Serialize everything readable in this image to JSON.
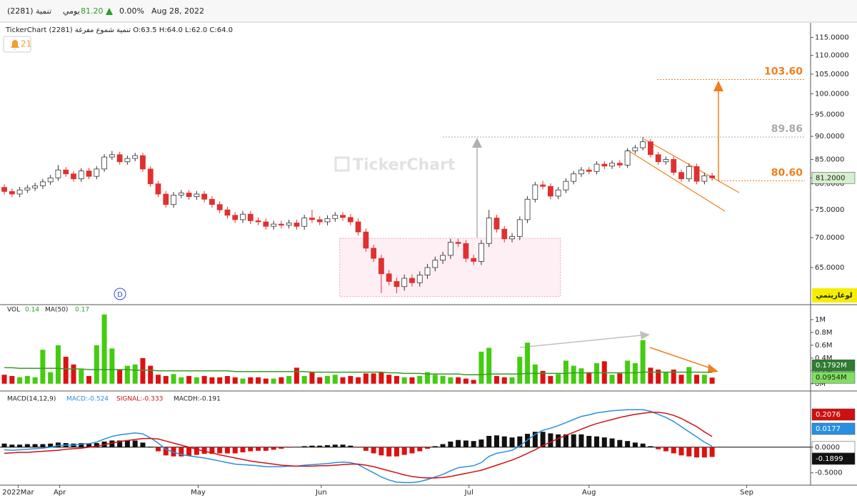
{
  "header": {
    "symbol": "(2281) تنمية",
    "period": "يومي",
    "price": "81.20",
    "change": "0.00%",
    "date": "Aug 28, 2022"
  },
  "chart_data": [
    {
      "type": "candlestick",
      "info": "TickerChart تنمية شموع مفرغة (2281) O:63.5 H:64.0 L:62.0 C:64.0",
      "alerts": "21",
      "watermark": "TickerChart",
      "marker": "D",
      "log_scale": true,
      "log_label": "لوغاريتمي",
      "up_color": "#ffffff",
      "down_color": "#e03030",
      "open": [
        79.3,
        78.5,
        78.0,
        78.8,
        79.2,
        79.6,
        80.4,
        81.2,
        82.8,
        82.0,
        81.0,
        82.6,
        81.5,
        83.0,
        85.5,
        86.0,
        84.5,
        85.2,
        85.8,
        83.0,
        80.0,
        78.0,
        76.0,
        77.8,
        78.2,
        77.5,
        78.0,
        77.0,
        76.0,
        75.0,
        74.0,
        73.2,
        74.2,
        73.0,
        72.8,
        72.0,
        72.4,
        72.2,
        72.6,
        72.0,
        73.5,
        73.2,
        72.8,
        73.4,
        74.0,
        73.6,
        72.8,
        71.0,
        68.2,
        66.5,
        64.0,
        62.8,
        62.0,
        63.3,
        62.6,
        63.8,
        65.0,
        66.2,
        67.0,
        69.2,
        69.0,
        66.5,
        66.0,
        69.0,
        73.5,
        71.5,
        69.8,
        70.2,
        73.2,
        77.0,
        79.8,
        79.5,
        77.6,
        78.8,
        80.5,
        82.0,
        82.8,
        82.5,
        84.0,
        83.6,
        84.2,
        83.8,
        86.8,
        87.5,
        88.8,
        86.0,
        84.5,
        85.0,
        82.3,
        81.0,
        83.5,
        80.5,
        81.6
      ],
      "high": [
        79.9,
        79.1,
        79.4,
        79.8,
        80.2,
        81.0,
        81.8,
        83.8,
        83.4,
        82.6,
        83.2,
        83.2,
        83.6,
        86.1,
        86.8,
        86.6,
        85.8,
        86.4,
        86.4,
        83.6,
        80.6,
        78.6,
        78.4,
        78.8,
        78.8,
        78.6,
        78.6,
        77.6,
        76.6,
        75.6,
        74.6,
        74.8,
        74.8,
        73.6,
        73.4,
        73.0,
        73.0,
        73.2,
        73.2,
        74.1,
        75.0,
        73.8,
        74.0,
        74.6,
        74.6,
        74.2,
        73.4,
        71.6,
        68.8,
        67.1,
        64.6,
        63.4,
        63.9,
        63.9,
        64.4,
        65.6,
        66.8,
        67.6,
        69.8,
        69.8,
        69.6,
        67.1,
        69.6,
        75.0,
        74.1,
        72.1,
        70.8,
        73.8,
        77.6,
        80.4,
        80.6,
        80.1,
        79.4,
        81.1,
        82.6,
        83.4,
        83.4,
        84.6,
        84.6,
        84.8,
        84.8,
        87.4,
        88.1,
        89.86,
        89.4,
        86.6,
        85.6,
        85.6,
        82.9,
        84.1,
        84.1,
        82.2,
        82.2
      ],
      "low": [
        77.9,
        77.4,
        77.4,
        78.2,
        78.6,
        79.0,
        79.8,
        80.6,
        81.4,
        80.4,
        80.4,
        80.9,
        80.9,
        82.4,
        84.9,
        83.9,
        83.9,
        84.6,
        82.4,
        79.4,
        77.4,
        75.4,
        75.4,
        77.2,
        76.9,
        76.9,
        76.4,
        75.4,
        74.4,
        73.4,
        72.6,
        72.6,
        72.4,
        72.2,
        71.4,
        71.4,
        71.6,
        71.6,
        71.4,
        71.4,
        72.6,
        72.2,
        72.2,
        72.8,
        73.0,
        72.2,
        70.4,
        67.6,
        65.9,
        61.0,
        62.2,
        61.0,
        61.4,
        62.0,
        62.0,
        63.2,
        64.4,
        65.6,
        66.4,
        68.4,
        65.9,
        65.4,
        65.4,
        68.4,
        70.9,
        69.2,
        69.2,
        69.6,
        72.6,
        76.4,
        78.9,
        77.0,
        77.0,
        78.2,
        79.9,
        81.4,
        81.9,
        81.9,
        83.0,
        83.0,
        83.2,
        83.2,
        86.2,
        86.9,
        85.4,
        83.9,
        83.9,
        81.7,
        80.4,
        80.4,
        79.9,
        79.9,
        80.6
      ],
      "close": [
        78.5,
        78.0,
        78.8,
        79.2,
        79.6,
        80.4,
        81.2,
        82.8,
        82.0,
        81.0,
        82.6,
        81.5,
        83.0,
        85.5,
        86.0,
        84.5,
        85.2,
        85.8,
        83.0,
        80.0,
        78.0,
        76.0,
        77.8,
        78.2,
        77.5,
        78.0,
        77.0,
        76.0,
        75.0,
        74.0,
        73.2,
        74.2,
        73.0,
        72.8,
        72.0,
        72.4,
        72.2,
        72.6,
        72.0,
        73.5,
        73.2,
        72.8,
        73.4,
        74.0,
        73.6,
        72.8,
        71.0,
        68.2,
        66.5,
        64.0,
        62.8,
        62.0,
        63.3,
        62.6,
        63.8,
        65.0,
        66.2,
        67.0,
        69.2,
        69.0,
        66.5,
        66.0,
        69.0,
        73.5,
        71.5,
        69.8,
        70.2,
        73.2,
        77.0,
        79.8,
        79.5,
        77.6,
        78.8,
        80.5,
        82.0,
        82.8,
        82.5,
        84.0,
        83.6,
        84.2,
        83.8,
        86.8,
        87.5,
        88.8,
        86.0,
        84.5,
        85.0,
        82.3,
        81.0,
        83.5,
        80.5,
        81.6,
        81.2
      ],
      "last_label": "81.2000",
      "ylim": [
        59.5,
        118
      ],
      "yticks": [
        {
          "value": 115,
          "label": "115.0000"
        },
        {
          "value": 110,
          "label": "110.0000"
        },
        {
          "value": 105,
          "label": "105.0000"
        },
        {
          "value": 100,
          "label": "100.0000"
        },
        {
          "value": 95,
          "label": "95.0000"
        },
        {
          "value": 90,
          "label": "90.0000"
        },
        {
          "value": 85,
          "label": "85.0000"
        },
        {
          "value": 80,
          "label": "80.0000"
        },
        {
          "value": 75,
          "label": "75.0000"
        },
        {
          "value": 70,
          "label": "70.0000"
        },
        {
          "value": 65,
          "label": "65.0000"
        }
      ],
      "xlim": [
        -0.56,
        104.8
      ],
      "xticks": [
        {
          "value": 1.8,
          "label": "2022Mar"
        },
        {
          "value": 7.2,
          "label": "Apr"
        },
        {
          "value": 25.2,
          "label": "May"
        },
        {
          "value": 41.2,
          "label": "Jun"
        },
        {
          "value": 60.4,
          "label": "Jul"
        },
        {
          "value": 76.0,
          "label": "Aug"
        },
        {
          "value": 96.5,
          "label": "Sep"
        }
      ],
      "levels": [
        {
          "value": 103.6,
          "label": "103.60",
          "color": "#f07f1e"
        },
        {
          "value": 89.86,
          "label": "89.86",
          "color": "#aaaaaa"
        },
        {
          "value": 80.6,
          "label": "80.60",
          "color": "#f07f1e"
        }
      ],
      "zone": {
        "x": [
          43.6,
          72.3
        ],
        "y": [
          60.5,
          69.9
        ]
      }
    },
    {
      "type": "volume",
      "up_color": "#44cc11",
      "down_color": "#dd1111",
      "series": [
        {
          "name": "VOL",
          "legend_value": "0.14",
          "last_label": "0.0954M",
          "values": [
            0.14,
            0.12,
            0.1,
            0.12,
            0.1,
            0.53,
            0.18,
            0.6,
            0.42,
            0.3,
            0.22,
            0.12,
            0.6,
            1.08,
            0.55,
            0.22,
            0.28,
            0.3,
            0.4,
            0.28,
            0.14,
            0.12,
            0.15,
            0.1,
            0.12,
            0.1,
            0.12,
            0.1,
            0.1,
            0.12,
            0.1,
            0.08,
            0.1,
            0.1,
            0.08,
            0.08,
            0.1,
            0.12,
            0.25,
            0.12,
            0.18,
            0.1,
            0.12,
            0.14,
            0.1,
            0.12,
            0.1,
            0.16,
            0.16,
            0.18,
            0.14,
            0.12,
            0.1,
            0.1,
            0.12,
            0.18,
            0.14,
            0.12,
            0.1,
            0.1,
            0.08,
            0.06,
            0.5,
            0.56,
            0.12,
            0.1,
            0.1,
            0.42,
            0.64,
            0.3,
            0.2,
            0.12,
            0.15,
            0.36,
            0.28,
            0.24,
            0.18,
            0.32,
            0.35,
            0.14,
            0.16,
            0.36,
            0.32,
            0.68,
            0.25,
            0.22,
            0.18,
            0.22,
            0.14,
            0.26,
            0.14,
            0.14,
            0.0954
          ]
        },
        {
          "name": "MA(50)",
          "legend_value": "0.17",
          "last_label": "0.1792M",
          "color": "#3a9a2a",
          "values": [
            0.25,
            0.25,
            0.24,
            0.24,
            0.24,
            0.24,
            0.24,
            0.24,
            0.23,
            0.23,
            0.23,
            0.22,
            0.22,
            0.22,
            0.22,
            0.22,
            0.22,
            0.21,
            0.21,
            0.21,
            0.2,
            0.2,
            0.2,
            0.2,
            0.2,
            0.2,
            0.2,
            0.2,
            0.2,
            0.2,
            0.19,
            0.19,
            0.19,
            0.19,
            0.19,
            0.19,
            0.19,
            0.19,
            0.19,
            0.19,
            0.18,
            0.18,
            0.18,
            0.18,
            0.18,
            0.18,
            0.18,
            0.18,
            0.18,
            0.18,
            0.17,
            0.17,
            0.16,
            0.16,
            0.16,
            0.15,
            0.15,
            0.15,
            0.15,
            0.15,
            0.14,
            0.14,
            0.14,
            0.15,
            0.15,
            0.15,
            0.15,
            0.15,
            0.16,
            0.16,
            0.16,
            0.16,
            0.16,
            0.16,
            0.17,
            0.17,
            0.17,
            0.17,
            0.17,
            0.17,
            0.17,
            0.17,
            0.17,
            0.18,
            0.18,
            0.18,
            0.18,
            0.18,
            0.18,
            0.18,
            0.18,
            0.18,
            0.1792
          ]
        }
      ],
      "ylim": [
        -0.08,
        1.2
      ],
      "yticks": [
        {
          "value": 1,
          "label": "1M"
        },
        {
          "value": 0.8,
          "label": "0.8M"
        },
        {
          "value": 0.6,
          "label": "0.6M"
        },
        {
          "value": 0.4,
          "label": "0.4M"
        },
        {
          "value": 0.2,
          "label": "0.2M"
        },
        {
          "value": 0,
          "label": "0M"
        }
      ]
    },
    {
      "type": "macd",
      "name": "MACD(14,12,9)",
      "series": [
        {
          "label": "MACD:-0.524",
          "last_label": "0.0177",
          "color": "#2a8fe0",
          "values": [
            -0.05,
            -0.06,
            -0.05,
            -0.04,
            -0.03,
            -0.02,
            0.0,
            0.03,
            0.04,
            0.04,
            0.06,
            0.07,
            0.1,
            0.16,
            0.21,
            0.24,
            0.26,
            0.28,
            0.26,
            0.18,
            0.08,
            -0.04,
            -0.1,
            -0.14,
            -0.17,
            -0.19,
            -0.21,
            -0.24,
            -0.27,
            -0.3,
            -0.33,
            -0.34,
            -0.35,
            -0.36,
            -0.38,
            -0.38,
            -0.38,
            -0.37,
            -0.37,
            -0.35,
            -0.34,
            -0.33,
            -0.32,
            -0.3,
            -0.29,
            -0.3,
            -0.34,
            -0.42,
            -0.5,
            -0.58,
            -0.64,
            -0.68,
            -0.69,
            -0.69,
            -0.67,
            -0.63,
            -0.58,
            -0.53,
            -0.46,
            -0.4,
            -0.38,
            -0.36,
            -0.3,
            -0.18,
            -0.12,
            -0.09,
            -0.06,
            0.02,
            0.14,
            0.25,
            0.33,
            0.37,
            0.42,
            0.48,
            0.54,
            0.6,
            0.63,
            0.67,
            0.69,
            0.71,
            0.72,
            0.73,
            0.73,
            0.73,
            0.7,
            0.64,
            0.58,
            0.5,
            0.4,
            0.3,
            0.2,
            0.1,
            0.0177
          ]
        },
        {
          "label": "SIGNAL:-0.333",
          "last_label": "0.2076",
          "color": "#d01010",
          "values": [
            -0.12,
            -0.11,
            -0.1,
            -0.1,
            -0.09,
            -0.08,
            -0.07,
            -0.06,
            -0.04,
            -0.03,
            -0.02,
            0.0,
            0.02,
            0.05,
            0.08,
            0.11,
            0.13,
            0.15,
            0.17,
            0.17,
            0.16,
            0.12,
            0.08,
            0.04,
            0.0,
            -0.04,
            -0.08,
            -0.11,
            -0.15,
            -0.18,
            -0.21,
            -0.24,
            -0.27,
            -0.29,
            -0.31,
            -0.33,
            -0.35,
            -0.36,
            -0.37,
            -0.37,
            -0.37,
            -0.36,
            -0.36,
            -0.35,
            -0.34,
            -0.33,
            -0.33,
            -0.35,
            -0.38,
            -0.42,
            -0.46,
            -0.5,
            -0.54,
            -0.57,
            -0.59,
            -0.6,
            -0.6,
            -0.59,
            -0.57,
            -0.54,
            -0.51,
            -0.48,
            -0.45,
            -0.4,
            -0.35,
            -0.3,
            -0.25,
            -0.19,
            -0.12,
            -0.05,
            0.03,
            0.1,
            0.17,
            0.23,
            0.29,
            0.35,
            0.41,
            0.46,
            0.5,
            0.54,
            0.58,
            0.61,
            0.64,
            0.66,
            0.68,
            0.68,
            0.66,
            0.62,
            0.56,
            0.48,
            0.4,
            0.3,
            0.2076
          ]
        },
        {
          "label": "MACDH:-0.191",
          "last_label": "-0.1899",
          "color": "#111111",
          "neg_color": "#dd1111",
          "values": [
            0.07,
            0.05,
            0.05,
            0.06,
            0.06,
            0.06,
            0.07,
            0.09,
            0.08,
            0.07,
            0.08,
            0.07,
            0.08,
            0.11,
            0.13,
            0.13,
            0.13,
            0.13,
            0.09,
            0.01,
            -0.08,
            -0.16,
            -0.18,
            -0.18,
            -0.17,
            -0.15,
            -0.13,
            -0.13,
            -0.12,
            -0.12,
            -0.12,
            -0.1,
            -0.08,
            -0.07,
            -0.07,
            -0.05,
            -0.03,
            -0.01,
            0.0,
            0.02,
            0.03,
            0.03,
            0.04,
            0.05,
            0.05,
            0.03,
            -0.01,
            -0.07,
            -0.12,
            -0.16,
            -0.18,
            -0.18,
            -0.15,
            -0.12,
            -0.08,
            -0.03,
            0.02,
            0.06,
            0.11,
            0.14,
            0.13,
            0.12,
            0.15,
            0.22,
            0.23,
            0.21,
            0.19,
            0.21,
            0.26,
            0.3,
            0.3,
            0.27,
            0.25,
            0.25,
            0.25,
            0.25,
            0.22,
            0.21,
            0.19,
            0.17,
            0.14,
            0.12,
            0.09,
            0.07,
            0.02,
            -0.04,
            -0.08,
            -0.12,
            -0.16,
            -0.18,
            -0.2,
            -0.2,
            -0.1899
          ]
        }
      ],
      "ylim": [
        -0.74,
        1.04
      ],
      "yticks": [
        {
          "value": 0,
          "label": "0.0000"
        },
        {
          "value": -0.5,
          "label": "-0.5000"
        }
      ]
    }
  ]
}
